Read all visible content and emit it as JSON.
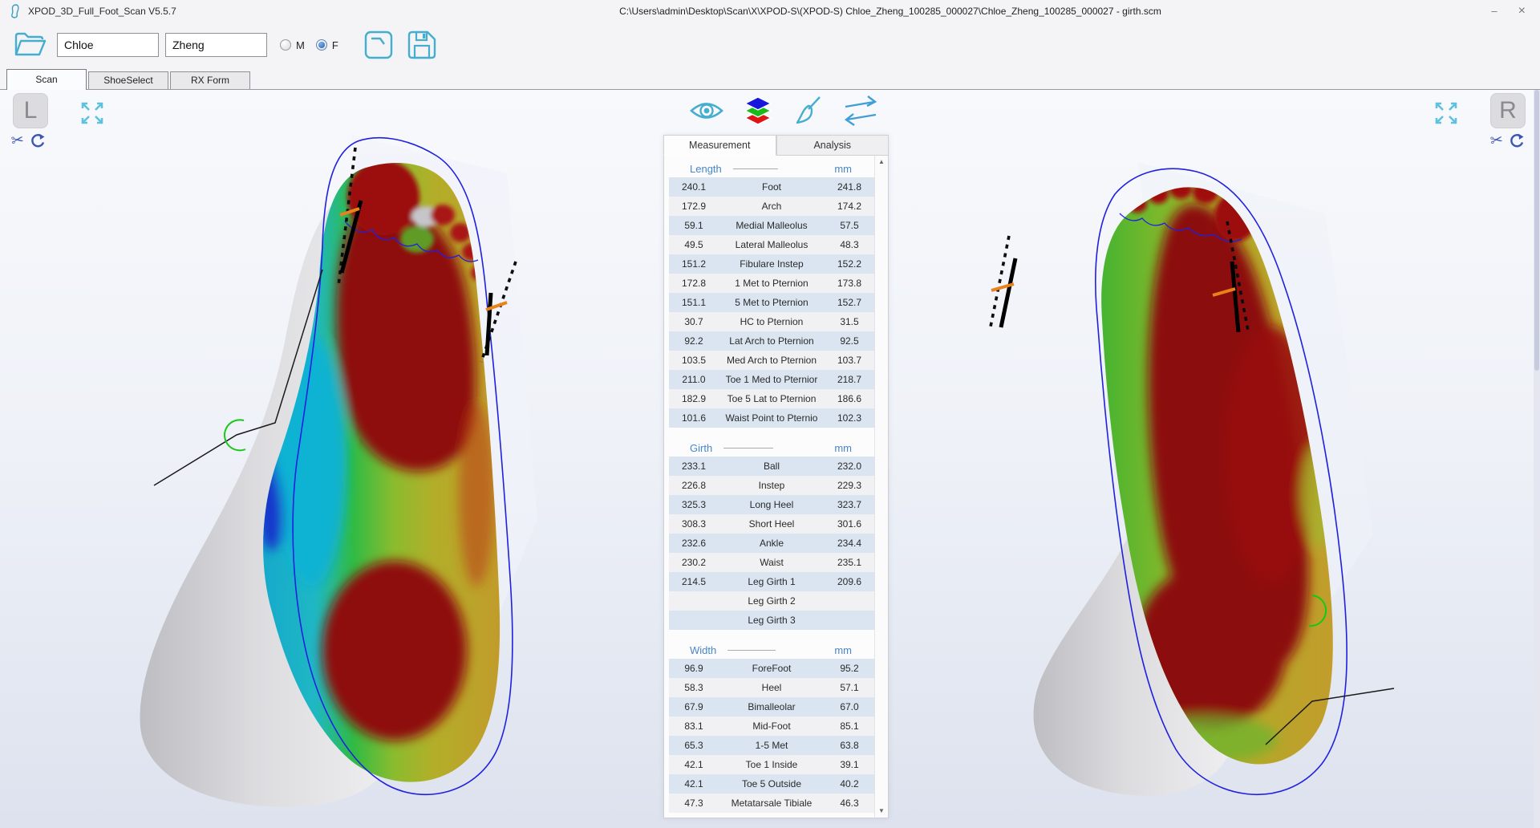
{
  "window": {
    "app_title": "XPOD_3D_Full_Foot_Scan V5.5.7",
    "document_path": "C:\\Users\\admin\\Desktop\\Scan\\X\\XPOD-S\\(XPOD-S) Chloe_Zheng_100285_000027\\Chloe_Zheng_100285_000027 - girth.scm",
    "minimize_glyph": "–",
    "close_glyph": "×"
  },
  "toolbar": {
    "first_name_value": "Chloe",
    "last_name_value": "Zheng",
    "gender": {
      "options": [
        "M",
        "F"
      ],
      "selected": "F"
    },
    "buttons": [
      "open-folder",
      "scan",
      "save"
    ]
  },
  "tabs": {
    "items": [
      "Scan",
      "ShoeSelect",
      "RX Form"
    ],
    "active": "Scan"
  },
  "viewer": {
    "left_foot_label": "L",
    "right_foot_label": "R",
    "toolbar_icons": [
      "eye-visibility",
      "color-layers",
      "paint-brush",
      "swap-feet"
    ],
    "side_tool_icons": [
      "scissors-crop",
      "rotate-reset"
    ],
    "scroll_up_glyph": "▲",
    "scroll_down_glyph": "▼",
    "scissors_glyph": "✂"
  },
  "colors": {
    "accent_cyan": "#45aecf",
    "icon_blue": "#3a54b8",
    "header_blue": "#4886c8",
    "row_blue": "#dbe5f2",
    "row_gray": "#f1f1f3",
    "last_outline_blue": "#2020e0",
    "pressure_red": "#8e0f10",
    "tick_orange": "#e8821a",
    "angle_green": "#17c817"
  },
  "measurement_panel": {
    "tabs": [
      "Measurement",
      "Analysis"
    ],
    "active_tab": "Measurement",
    "unit": "mm",
    "sections": [
      {
        "title": "Length",
        "rows": [
          {
            "left": "240.1",
            "name": "Foot",
            "right": "241.8"
          },
          {
            "left": "172.9",
            "name": "Arch",
            "right": "174.2"
          },
          {
            "left": "59.1",
            "name": "Medial Malleolus",
            "right": "57.5"
          },
          {
            "left": "49.5",
            "name": "Lateral Malleolus",
            "right": "48.3"
          },
          {
            "left": "151.2",
            "name": "Fibulare Instep",
            "right": "152.2"
          },
          {
            "left": "172.8",
            "name": "1 Met to Pternion",
            "right": "173.8"
          },
          {
            "left": "151.1",
            "name": "5 Met to Pternion",
            "right": "152.7"
          },
          {
            "left": "30.7",
            "name": "HC to Pternion",
            "right": "31.5"
          },
          {
            "left": "92.2",
            "name": "Lat Arch to Pternion",
            "right": "92.5"
          },
          {
            "left": "103.5",
            "name": "Med Arch to Pternion",
            "right": "103.7"
          },
          {
            "left": "211.0",
            "name": "Toe 1 Med to Pternior",
            "right": "218.7"
          },
          {
            "left": "182.9",
            "name": "Toe 5 Lat to Pternion",
            "right": "186.6"
          },
          {
            "left": "101.6",
            "name": "Waist Point to Pternio",
            "right": "102.3"
          }
        ]
      },
      {
        "title": "Girth",
        "rows": [
          {
            "left": "233.1",
            "name": "Ball",
            "right": "232.0"
          },
          {
            "left": "226.8",
            "name": "Instep",
            "right": "229.3"
          },
          {
            "left": "325.3",
            "name": "Long Heel",
            "right": "323.7"
          },
          {
            "left": "308.3",
            "name": "Short Heel",
            "right": "301.6"
          },
          {
            "left": "232.6",
            "name": "Ankle",
            "right": "234.4"
          },
          {
            "left": "230.2",
            "name": "Waist",
            "right": "235.1"
          },
          {
            "left": "214.5",
            "name": "Leg Girth 1",
            "right": "209.6"
          },
          {
            "left": "",
            "name": "Leg Girth 2",
            "right": ""
          },
          {
            "left": "",
            "name": "Leg Girth 3",
            "right": ""
          }
        ]
      },
      {
        "title": "Width",
        "rows": [
          {
            "left": "96.9",
            "name": "ForeFoot",
            "right": "95.2"
          },
          {
            "left": "58.3",
            "name": "Heel",
            "right": "57.1"
          },
          {
            "left": "67.9",
            "name": "Bimalleolar",
            "right": "67.0"
          },
          {
            "left": "83.1",
            "name": "Mid-Foot",
            "right": "85.1"
          },
          {
            "left": "65.3",
            "name": "1-5 Met",
            "right": "63.8"
          },
          {
            "left": "42.1",
            "name": "Toe 1 Inside",
            "right": "39.1"
          },
          {
            "left": "42.1",
            "name": "Toe 5 Outside",
            "right": "40.2"
          },
          {
            "left": "47.3",
            "name": "Metatarsale Tibiale",
            "right": "46.3"
          }
        ]
      }
    ]
  }
}
